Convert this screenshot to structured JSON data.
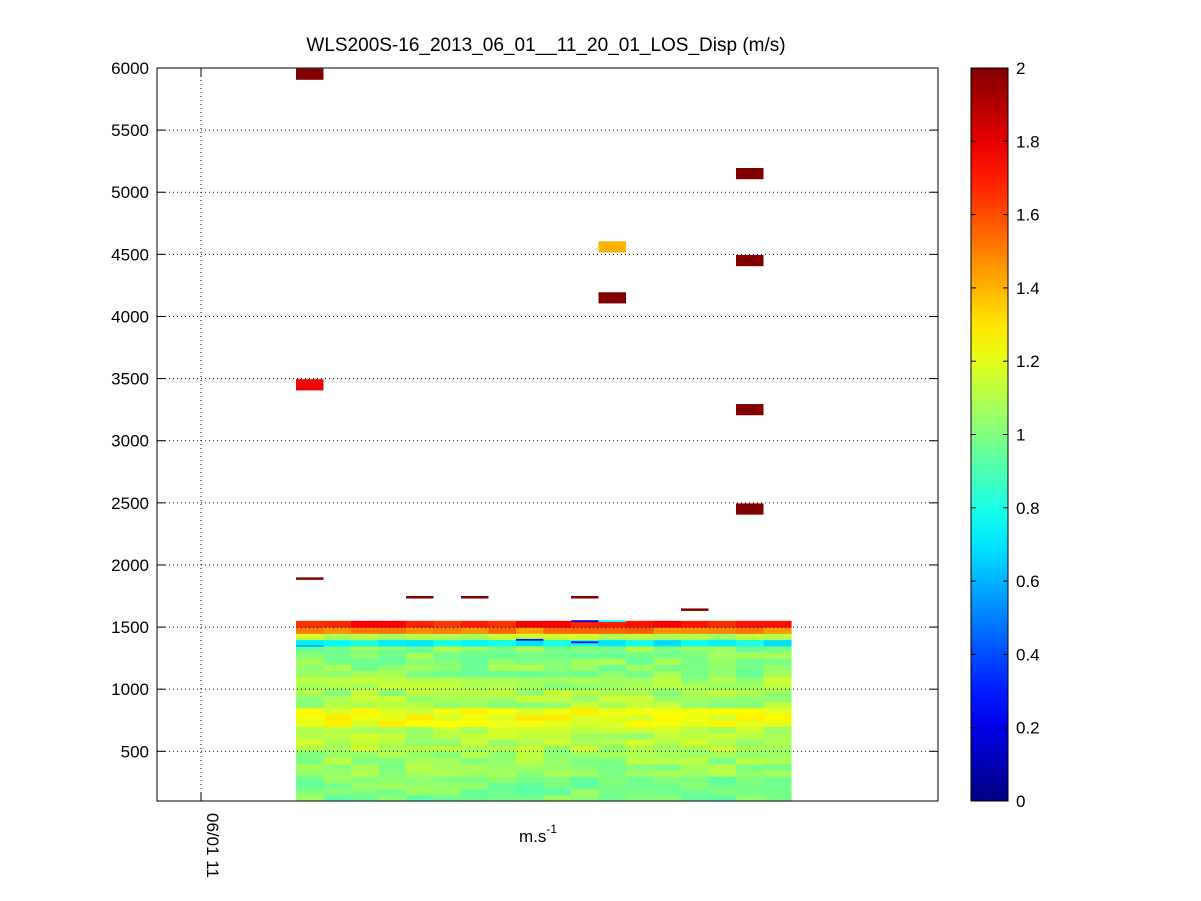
{
  "chart_data": {
    "type": "heatmap",
    "title": "WLS200S-16_2013_06_01__11_20_01_LOS_Disp (m/s)",
    "xlabel": "m.s",
    "xlabel_superscript": "-1",
    "ylabel": "",
    "ylim": [
      100,
      6000
    ],
    "y_ticks": [
      500,
      1000,
      1500,
      2000,
      2500,
      3000,
      3500,
      4000,
      4500,
      5000,
      5500,
      6000
    ],
    "x_ticks": [
      "06/01 11"
    ],
    "grid": true,
    "colormap": "jet",
    "colorbar": {
      "min": 0,
      "max": 2,
      "ticks": [
        0,
        0.2,
        0.4,
        0.6,
        0.8,
        1,
        1.2,
        1.4,
        1.6,
        1.8,
        2
      ]
    },
    "time_columns": 18,
    "first_column": 0,
    "range_gate_step": 50,
    "outliers": [
      {
        "col": 0,
        "y": 5950,
        "value": 2.0
      },
      {
        "col": 0,
        "y": 3450,
        "value": 1.78
      },
      {
        "col": 0,
        "y": 1890,
        "value": 2.0
      },
      {
        "col": 4,
        "y": 1740,
        "value": 2.0
      },
      {
        "col": 6,
        "y": 1740,
        "value": 2.0
      },
      {
        "col": 10,
        "y": 1740,
        "value": 2.0
      },
      {
        "col": 14,
        "y": 1640,
        "value": 2.0
      },
      {
        "col": 11,
        "y": 4560,
        "value": 1.4
      },
      {
        "col": 11,
        "y": 4150,
        "value": 2.0
      },
      {
        "col": 16,
        "y": 5150,
        "value": 2.0
      },
      {
        "col": 16,
        "y": 4450,
        "value": 2.0
      },
      {
        "col": 16,
        "y": 3250,
        "value": 2.0
      },
      {
        "col": 16,
        "y": 2450,
        "value": 2.0
      }
    ],
    "profile_values_by_range": [
      {
        "y_from": 100,
        "y_to": 300,
        "value": 1.0
      },
      {
        "y_from": 300,
        "y_to": 500,
        "value": 1.05
      },
      {
        "y_from": 500,
        "y_to": 700,
        "value": 1.1
      },
      {
        "y_from": 700,
        "y_to": 850,
        "value": 1.22
      },
      {
        "y_from": 850,
        "y_to": 1100,
        "value": 1.08
      },
      {
        "y_from": 1100,
        "y_to": 1350,
        "value": 1.02
      },
      {
        "y_from": 1350,
        "y_to": 1400,
        "value": 0.75
      },
      {
        "y_from": 1400,
        "y_to": 1450,
        "value": 1.1
      },
      {
        "y_from": 1450,
        "y_to": 1500,
        "value": 1.5
      },
      {
        "y_from": 1500,
        "y_to": 1550,
        "value": 1.7
      }
    ],
    "blue_cells": [
      {
        "col": 8,
        "y": 1390,
        "value": 0.3
      },
      {
        "col": 10,
        "y": 1370,
        "value": 0.25
      },
      {
        "col": 10,
        "y": 1540,
        "value": 0.2
      },
      {
        "col": 0,
        "y": 1340,
        "value": 0.6
      },
      {
        "col": 11,
        "y": 1540,
        "value": 0.75
      }
    ]
  }
}
